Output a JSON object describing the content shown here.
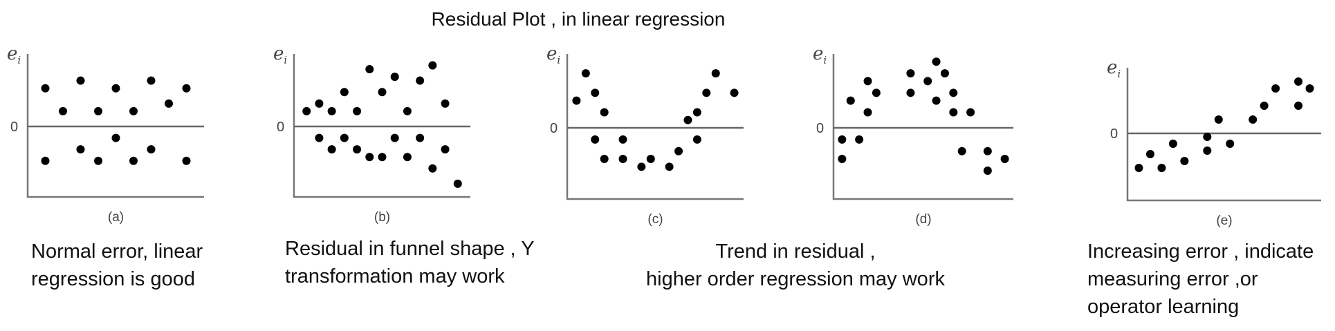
{
  "title": "Residual Plot , in linear regression",
  "y_label": "e",
  "y_label_sub": "i",
  "zero_label": "0",
  "panels": [
    {
      "label": "(a)",
      "caption": [
        "Normal error, linear",
        "regression is good"
      ],
      "points": [
        [
          1,
          0.5
        ],
        [
          2,
          0.2
        ],
        [
          3,
          0.6
        ],
        [
          4,
          0.2
        ],
        [
          5,
          0.5
        ],
        [
          6,
          0.2
        ],
        [
          7,
          0.6
        ],
        [
          8,
          0.3
        ],
        [
          9,
          0.5
        ],
        [
          1,
          -0.45
        ],
        [
          3,
          -0.3
        ],
        [
          4,
          -0.45
        ],
        [
          5,
          -0.15
        ],
        [
          6,
          -0.45
        ],
        [
          7,
          -0.3
        ],
        [
          9,
          -0.45
        ]
      ]
    },
    {
      "label": "(b)",
      "caption": [
        "Residual in funnel shape , Y",
        "transformation may work"
      ],
      "points": [
        [
          1,
          0.2
        ],
        [
          2,
          0.3
        ],
        [
          3,
          0.2
        ],
        [
          4,
          0.45
        ],
        [
          5,
          0.2
        ],
        [
          6,
          0.75
        ],
        [
          7,
          0.45
        ],
        [
          8,
          0.65
        ],
        [
          9,
          0.2
        ],
        [
          10,
          0.6
        ],
        [
          11,
          0.8
        ],
        [
          12,
          0.3
        ],
        [
          2,
          -0.15
        ],
        [
          3,
          -0.3
        ],
        [
          4,
          -0.15
        ],
        [
          5,
          -0.3
        ],
        [
          6,
          -0.4
        ],
        [
          7,
          -0.4
        ],
        [
          8,
          -0.15
        ],
        [
          9,
          -0.4
        ],
        [
          10,
          -0.15
        ],
        [
          11,
          -0.55
        ],
        [
          12,
          -0.3
        ],
        [
          13,
          -0.75
        ]
      ]
    },
    {
      "label": "(c)",
      "caption": [
        "Trend in residual ,",
        "higher order regression may work"
      ],
      "points": [
        [
          1,
          0.35
        ],
        [
          2,
          0.7
        ],
        [
          3,
          0.45
        ],
        [
          4,
          0.2
        ],
        [
          3,
          -0.15
        ],
        [
          4,
          -0.4
        ],
        [
          6,
          -0.15
        ],
        [
          6,
          -0.4
        ],
        [
          8,
          -0.5
        ],
        [
          9,
          -0.4
        ],
        [
          11,
          -0.5
        ],
        [
          12,
          -0.3
        ],
        [
          13,
          0.1
        ],
        [
          14,
          0.2
        ],
        [
          15,
          0.45
        ],
        [
          14,
          -0.15
        ],
        [
          16,
          0.7
        ],
        [
          18,
          0.45
        ]
      ]
    },
    {
      "label": "(d)",
      "caption": [],
      "points": [
        [
          1,
          -0.15
        ],
        [
          1,
          -0.4
        ],
        [
          2,
          0.35
        ],
        [
          3,
          -0.15
        ],
        [
          4,
          0.6
        ],
        [
          4,
          0.2
        ],
        [
          5,
          0.45
        ],
        [
          9,
          0.7
        ],
        [
          9,
          0.45
        ],
        [
          11,
          0.6
        ],
        [
          12,
          0.35
        ],
        [
          12,
          0.85
        ],
        [
          13,
          0.7
        ],
        [
          14,
          0.45
        ],
        [
          14,
          0.2
        ],
        [
          16,
          0.2
        ],
        [
          15,
          -0.3
        ],
        [
          18,
          -0.3
        ],
        [
          18,
          -0.55
        ],
        [
          20,
          -0.4
        ]
      ]
    },
    {
      "label": "(e)",
      "caption": [
        "Increasing error , indicate",
        "measuring error ,or",
        "operator learning"
      ],
      "points": [
        [
          1,
          -0.5
        ],
        [
          2,
          -0.3
        ],
        [
          3,
          -0.5
        ],
        [
          4,
          -0.15
        ],
        [
          5,
          -0.4
        ],
        [
          7,
          -0.05
        ],
        [
          7,
          -0.25
        ],
        [
          8,
          0.2
        ],
        [
          9,
          -0.15
        ],
        [
          11,
          0.2
        ],
        [
          12,
          0.4
        ],
        [
          13,
          0.65
        ],
        [
          15,
          0.75
        ],
        [
          15,
          0.4
        ],
        [
          16,
          0.65
        ]
      ]
    }
  ]
}
